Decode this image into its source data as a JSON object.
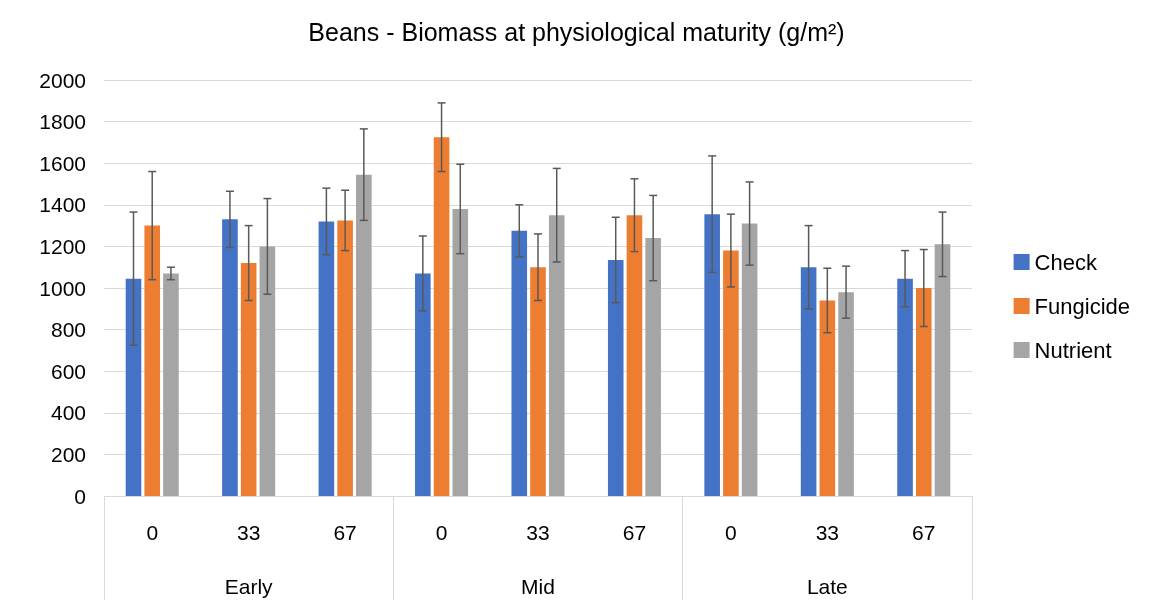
{
  "chart_data": {
    "type": "bar",
    "title": "Beans - Biomass at physiological maturity (g/m²)",
    "categories": [
      "0",
      "33",
      "67",
      "0",
      "33",
      "67",
      "0",
      "33",
      "67"
    ],
    "annotations": [
      "Early",
      "Mid",
      "Late"
    ],
    "series": [
      {
        "name": "Check",
        "color": "#4472c4",
        "values": [
          1045,
          1330,
          1320,
          1070,
          1275,
          1135,
          1355,
          1100,
          1045
        ],
        "errors": [
          320,
          135,
          160,
          180,
          125,
          205,
          280,
          200,
          135
        ]
      },
      {
        "name": "Fungicide",
        "color": "#ed7d31",
        "values": [
          1300,
          1120,
          1325,
          1725,
          1100,
          1350,
          1180,
          940,
          1000
        ],
        "errors": [
          260,
          180,
          145,
          165,
          160,
          175,
          175,
          155,
          185
        ]
      },
      {
        "name": "Nutrient",
        "color": "#a5a5a5",
        "values": [
          1070,
          1200,
          1545,
          1380,
          1350,
          1240,
          1310,
          980,
          1210
        ],
        "errors": [
          30,
          230,
          220,
          215,
          225,
          205,
          200,
          125,
          155
        ]
      }
    ],
    "ylim": [
      0,
      2000
    ],
    "yticks": [
      0,
      200,
      400,
      600,
      800,
      1000,
      1200,
      1400,
      1600,
      1800,
      2000
    ],
    "grid": "y",
    "legend": "right"
  }
}
